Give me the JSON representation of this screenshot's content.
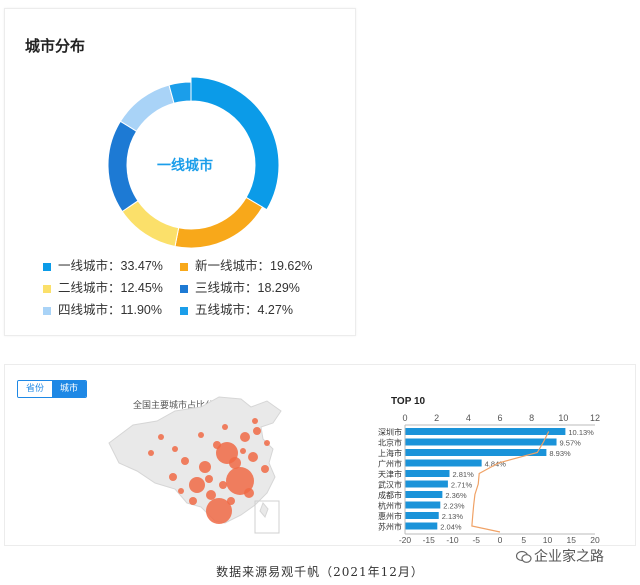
{
  "panel_top": {
    "title": "城市分布",
    "center_label": "一线城市"
  },
  "panel_bottom": {
    "tabs": [
      {
        "label": "省份",
        "active": false
      },
      {
        "label": "城市",
        "active": true
      }
    ],
    "map_title": "全国主要城市占比分布",
    "top10_title": "TOP 10"
  },
  "caption": "数据来源易观千帆（2021年12月）",
  "watermark": "企业家之路",
  "chart_data": [
    {
      "type": "pie",
      "variant": "donut",
      "title": "城市分布",
      "center_label": "一线城市",
      "legend_placement": "bottom",
      "slices": [
        {
          "label": "一线城市",
          "value": 33.47,
          "display": "一线城市：33.47%",
          "color": "#0b9be8"
        },
        {
          "label": "新一线城市",
          "value": 19.62,
          "display": "新一线城市：19.62%",
          "color": "#f8a81a"
        },
        {
          "label": "二线城市",
          "value": 12.45,
          "display": "二线城市：12.45%",
          "color": "#fbe06a"
        },
        {
          "label": "三线城市",
          "value": 18.29,
          "display": "三线城市：18.29%",
          "color": "#1d7ad4"
        },
        {
          "label": "四线城市",
          "value": 11.9,
          "display": "四线城市：11.90%",
          "color": "#a9d3f7"
        },
        {
          "label": "五线城市",
          "value": 4.27,
          "display": "五线城市：4.27%",
          "color": "#1b9eea"
        }
      ]
    },
    {
      "type": "bar",
      "orientation": "horizontal",
      "title": "TOP 10",
      "categories": [
        "深圳市",
        "北京市",
        "上海市",
        "广州市",
        "天津市",
        "武汉市",
        "成都市",
        "杭州市",
        "惠州市",
        "苏州市"
      ],
      "values": [
        10.13,
        9.57,
        8.93,
        4.84,
        2.81,
        2.71,
        2.36,
        2.23,
        2.13,
        2.04
      ],
      "value_labels": [
        "10.13%",
        "9.57%",
        "8.93%",
        "4.84%",
        "2.81%",
        "2.71%",
        "2.36%",
        "2.23%",
        "2.13%",
        "2.04%"
      ],
      "top_axis": {
        "ticks": [
          0,
          2,
          4,
          6,
          8,
          10,
          12
        ],
        "range": [
          0,
          12
        ]
      },
      "bottom_axis": {
        "ticks": [
          -20,
          -15,
          -10,
          -5,
          0,
          5,
          10,
          15,
          20
        ],
        "range": [
          -20,
          20
        ]
      },
      "bar_color": "#1a93d9",
      "line_color": "#f0a266"
    },
    {
      "type": "map",
      "title": "全国主要城市占比分布",
      "region_color": "#e9e9e9",
      "bubble_color": "#f06a45"
    }
  ]
}
